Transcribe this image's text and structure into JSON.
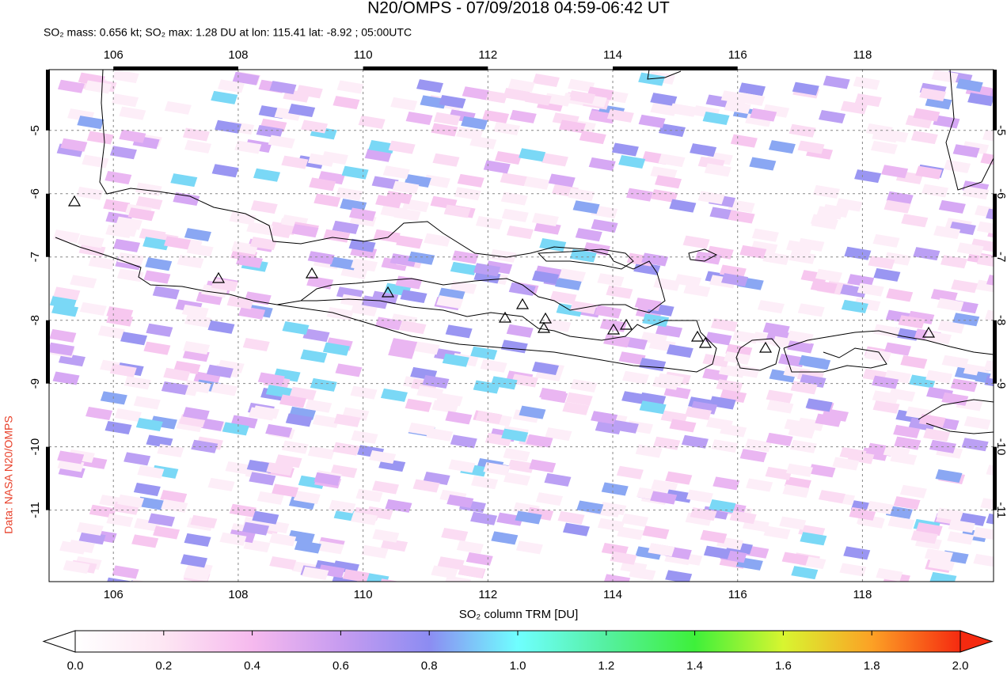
{
  "map": {
    "title": "N20/OMPS - 07/09/2018 04:59-06:42 UT",
    "subtitle": "SO₂ mass: 0.656 kt; SO₂ max: 1.28 DU at lon: 115.41 lat: -8.92 ; 05:00UTC",
    "credit": "Data: NASA N20/OMPS",
    "xlim": [
      104.97,
      120.1
    ],
    "ylim": [
      -12.13,
      -4.04
    ],
    "xticks": [
      106,
      108,
      110,
      112,
      114,
      116,
      118
    ],
    "yticks": [
      -5,
      -6,
      -7,
      -8,
      -9,
      -10,
      -11
    ],
    "colorbar": {
      "label": "SO₂ column TRM [DU]",
      "lim": [
        0,
        2
      ],
      "ticks": [
        {
          "value": 0,
          "label": "0.0"
        },
        {
          "value": 0.2,
          "label": "0.2"
        },
        {
          "value": 0.4,
          "label": "0.4"
        },
        {
          "value": 0.6,
          "label": "0.6"
        },
        {
          "value": 0.8,
          "label": "0.8"
        },
        {
          "value": 1,
          "label": "1.0"
        },
        {
          "value": 1.2,
          "label": "1.2"
        },
        {
          "value": 1.4,
          "label": "1.4"
        },
        {
          "value": 1.6,
          "label": "1.6"
        },
        {
          "value": 1.8,
          "label": "1.8"
        },
        {
          "value": 2,
          "label": "2.0"
        }
      ]
    }
  }
}
